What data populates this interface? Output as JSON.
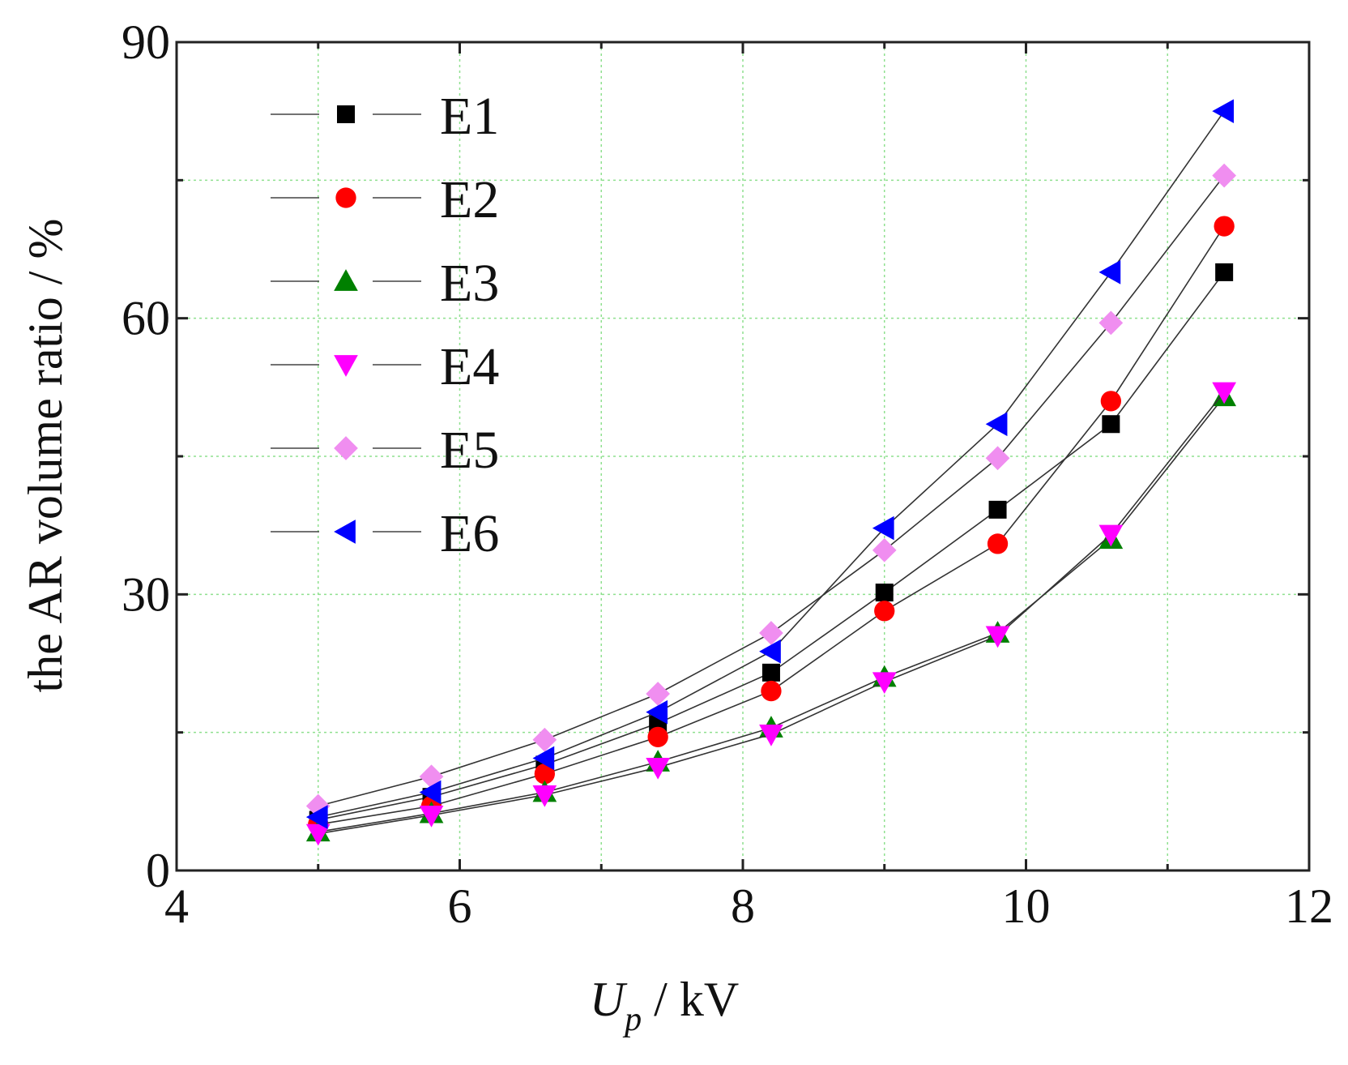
{
  "chart_data": {
    "type": "line",
    "title": "",
    "xlabel": {
      "main": "U",
      "subscript": "p",
      "unit": " / kV"
    },
    "ylabel": "the AR volume ratio / %",
    "xlim": [
      4,
      12
    ],
    "ylim": [
      0,
      90
    ],
    "xticks": [
      4,
      6,
      8,
      10,
      12
    ],
    "yticks": [
      0,
      30,
      60,
      90
    ],
    "grid": true,
    "legend_position": "top-left",
    "x": [
      5.0,
      5.8,
      6.6,
      7.4,
      8.2,
      9.0,
      9.8,
      10.6,
      11.4
    ],
    "series": [
      {
        "name": "E1",
        "marker": "square",
        "color": "#000000",
        "values": [
          5.5,
          8.0,
          11.5,
          16.0,
          21.5,
          30.2,
          39.2,
          48.5,
          65.0
        ]
      },
      {
        "name": "E2",
        "marker": "circle",
        "color": "#ff0000",
        "values": [
          5.0,
          7.0,
          10.5,
          14.5,
          19.5,
          28.2,
          35.5,
          51.0,
          70.0
        ]
      },
      {
        "name": "E3",
        "marker": "triangle-up",
        "color": "#008000",
        "values": [
          4.2,
          6.2,
          8.5,
          11.8,
          15.5,
          21.0,
          25.8,
          36.0,
          51.5
        ]
      },
      {
        "name": "E4",
        "marker": "triangle-down",
        "color": "#ff00ff",
        "values": [
          4.0,
          6.0,
          8.2,
          11.2,
          14.8,
          20.5,
          25.5,
          36.5,
          52.0
        ]
      },
      {
        "name": "E5",
        "marker": "diamond",
        "color": "#f08ef0",
        "values": [
          7.0,
          10.2,
          14.2,
          19.2,
          25.8,
          34.8,
          44.8,
          59.5,
          75.5
        ]
      },
      {
        "name": "E6",
        "marker": "triangle-left",
        "color": "#0000ff",
        "values": [
          5.8,
          8.5,
          12.2,
          17.2,
          23.8,
          37.2,
          48.5,
          65.0,
          82.5
        ]
      }
    ]
  }
}
